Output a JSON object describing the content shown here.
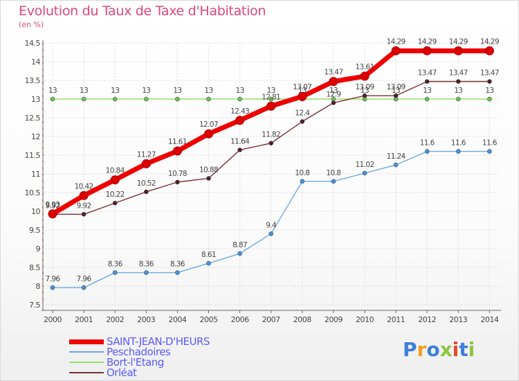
{
  "header": {
    "title": "Evolution du Taux de Taxe d'Habitation",
    "unit": "(en %)"
  },
  "logo": {
    "letters": [
      "P",
      "r",
      "o",
      "x",
      "i",
      "t",
      "i"
    ],
    "colors": [
      "#3d7fd9",
      "#f0a020",
      "#3d7fd9",
      "#8cc63f",
      "#e04a2a",
      "#3d7fd9",
      "#8cc63f"
    ]
  },
  "chart_data": {
    "type": "line",
    "x": [
      "2000",
      "2001",
      "2002",
      "2003",
      "2004",
      "2005",
      "2006",
      "2007",
      "2008",
      "2009",
      "2010",
      "2011",
      "2012",
      "2013",
      "2014"
    ],
    "ylim": [
      7.5,
      14.5
    ],
    "yticks": [
      7.5,
      8,
      8.5,
      9,
      9.5,
      10,
      10.5,
      11,
      11.5,
      12,
      12.5,
      13,
      13.5,
      14,
      14.5
    ],
    "grid": true,
    "legend_placement": "bottom-left",
    "series": [
      {
        "name": "Peschadoires",
        "color": "#6fa8dc",
        "dot": "#4a90d9",
        "values": [
          7.96,
          7.96,
          8.36,
          8.36,
          8.36,
          8.61,
          8.87,
          9.4,
          10.8,
          10.8,
          11.02,
          11.24,
          11.6,
          11.6,
          11.6
        ],
        "labels": [
          "7.96",
          "7.96",
          "8.36",
          "8.36",
          "8.36",
          "8.61",
          "8.87",
          "9.4",
          "10.8",
          "10.8",
          "11.02",
          "11.24",
          "11.6",
          "11.6",
          "11.6"
        ]
      },
      {
        "name": "Bort-l'Etang",
        "color": "#99dd66",
        "dot": "#77c044",
        "values": [
          13,
          13,
          13,
          13,
          13,
          13,
          13,
          13,
          13,
          13,
          13,
          13,
          13,
          13,
          13
        ],
        "labels": [
          "13",
          "13",
          "13",
          "13",
          "13",
          "13",
          "13",
          "13",
          "13",
          "13",
          "13",
          "13",
          "13",
          "13",
          "13"
        ]
      },
      {
        "name": "Orléat",
        "color": "#7a3030",
        "dot": "#5a1a1a",
        "values": [
          9.92,
          9.92,
          10.22,
          10.52,
          10.78,
          10.88,
          11.64,
          11.82,
          12.4,
          12.9,
          13.09,
          13.09,
          13.47,
          13.47,
          13.47
        ],
        "labels": [
          "9.92",
          "9.92",
          "10.22",
          "10.52",
          "10.78",
          "10.88",
          "11.64",
          "11.82",
          "12.4",
          "12.9",
          "13.09",
          "13.09",
          "13.47",
          "13.47",
          "13.47"
        ]
      },
      {
        "name": "SAINT-JEAN-D'HEURS",
        "color": "#ee0000",
        "dot": "#dd0000",
        "values": [
          9.93,
          10.42,
          10.84,
          11.27,
          11.61,
          12.07,
          12.43,
          12.81,
          13.07,
          13.47,
          13.61,
          14.29,
          14.29,
          14.29,
          14.29
        ],
        "labels": [
          "9.93",
          "10.42",
          "10.84",
          "11.27",
          "11.61",
          "12.07",
          "12.43",
          "12.81",
          "13.07",
          "13.47",
          "13.61",
          "14.29",
          "14.29",
          "14.29",
          "14.29"
        ]
      }
    ],
    "legend_order": [
      "SAINT-JEAN-D'HEURS",
      "Peschadoires",
      "Bort-l'Etang",
      "Orléat"
    ]
  }
}
